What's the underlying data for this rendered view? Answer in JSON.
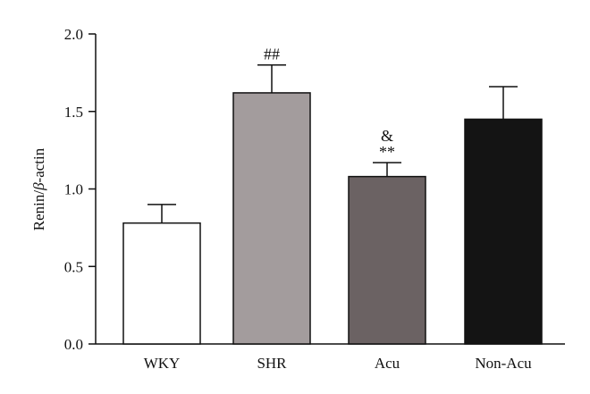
{
  "chart_data": {
    "type": "bar",
    "title": "",
    "xlabel": "",
    "ylabel_parts": [
      "Renin/",
      "β",
      "-actin"
    ],
    "ylim": [
      0,
      2.0
    ],
    "yticks": [
      0.0,
      0.5,
      1.0,
      1.5,
      2.0
    ],
    "ytick_labels": [
      "0.0",
      "0.5",
      "1.0",
      "1.5",
      "2.0"
    ],
    "grid": false,
    "legend": "none",
    "categories": [
      "WKY",
      "SHR",
      "Acu",
      "Non-Acu"
    ],
    "values": [
      0.78,
      1.62,
      1.08,
      1.45
    ],
    "errors": [
      0.12,
      0.18,
      0.09,
      0.21
    ],
    "colors": [
      "#ffffff",
      "#a39c9d",
      "#6b6263",
      "#141414"
    ],
    "annotations": [
      {
        "category": "SHR",
        "lines": [
          "##"
        ]
      },
      {
        "category": "Acu",
        "lines": [
          "&",
          "**"
        ]
      }
    ]
  }
}
